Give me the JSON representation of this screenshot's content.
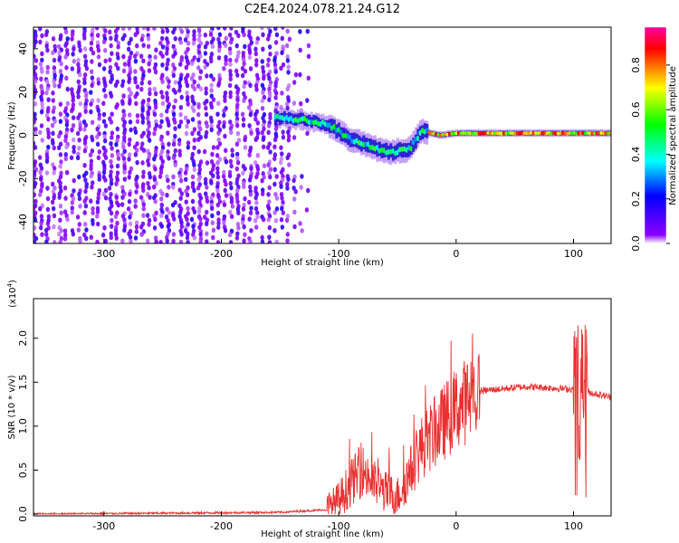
{
  "title": "C2E4.2024.078.21.24.G12",
  "chart_data": [
    {
      "type": "heatmap",
      "xlabel": "Height of straight line (km)",
      "ylabel": "Frequency (Hz)",
      "xlim": [
        -360,
        132
      ],
      "ylim": [
        -50,
        50
      ],
      "x_ticks": [
        -300,
        -200,
        -100,
        0,
        100
      ],
      "y_ticks": [
        -40,
        -20,
        0,
        20,
        40
      ],
      "colorbar": {
        "label": "Normalized spectral amplitude",
        "range": [
          0,
          0.97
        ],
        "ticks": [
          "0.0",
          "0.2",
          "0.4",
          "0.6",
          "0.8"
        ],
        "colors": [
          "#ffffff",
          "#8b00ff",
          "#0000ff",
          "#00ffff",
          "#00ff00",
          "#ffff00",
          "#ff0000",
          "#ff00a0"
        ]
      },
      "signal_track": [
        {
          "x": -150,
          "freq": 8
        },
        {
          "x": -130,
          "freq": 7
        },
        {
          "x": -110,
          "freq": 5
        },
        {
          "x": -90,
          "freq": -2
        },
        {
          "x": -70,
          "freq": -6
        },
        {
          "x": -55,
          "freq": -8
        },
        {
          "x": -40,
          "freq": -6
        },
        {
          "x": -30,
          "freq": 2
        },
        {
          "x": -15,
          "freq": 0
        },
        {
          "x": 0,
          "freq": 1
        },
        {
          "x": 20,
          "freq": 1
        },
        {
          "x": 132,
          "freq": 1
        }
      ]
    },
    {
      "type": "line",
      "xlabel": "Height of straight line (km)",
      "ylabel": "SNR (10 * v/v)",
      "y_multiplier": "(x10",
      "y_multiplier_exp": "4",
      "y_multiplier_close": ")",
      "xlim": [
        -360,
        132
      ],
      "ylim": [
        -0.02,
        2.45
      ],
      "x_ticks": [
        -300,
        -200,
        -100,
        0,
        100
      ],
      "y_ticks": [
        "0.0",
        "0.5",
        "1.0",
        "1.5",
        "2.0"
      ],
      "color": "#e83030",
      "envelope": [
        {
          "x": -360,
          "y": 0.0
        },
        {
          "x": -150,
          "y": 0.02
        },
        {
          "x": -110,
          "y": 0.05
        },
        {
          "x": -100,
          "y": 0.15
        },
        {
          "x": -90,
          "y": 0.35
        },
        {
          "x": -80,
          "y": 0.5
        },
        {
          "x": -70,
          "y": 0.35
        },
        {
          "x": -60,
          "y": 0.25
        },
        {
          "x": -50,
          "y": 0.2
        },
        {
          "x": -40,
          "y": 0.45
        },
        {
          "x": -30,
          "y": 0.75
        },
        {
          "x": -20,
          "y": 0.9
        },
        {
          "x": -10,
          "y": 1.05
        },
        {
          "x": 0,
          "y": 1.2
        },
        {
          "x": 20,
          "y": 1.4
        },
        {
          "x": 60,
          "y": 1.45
        },
        {
          "x": 100,
          "y": 1.42
        },
        {
          "x": 132,
          "y": 1.33
        }
      ]
    }
  ]
}
